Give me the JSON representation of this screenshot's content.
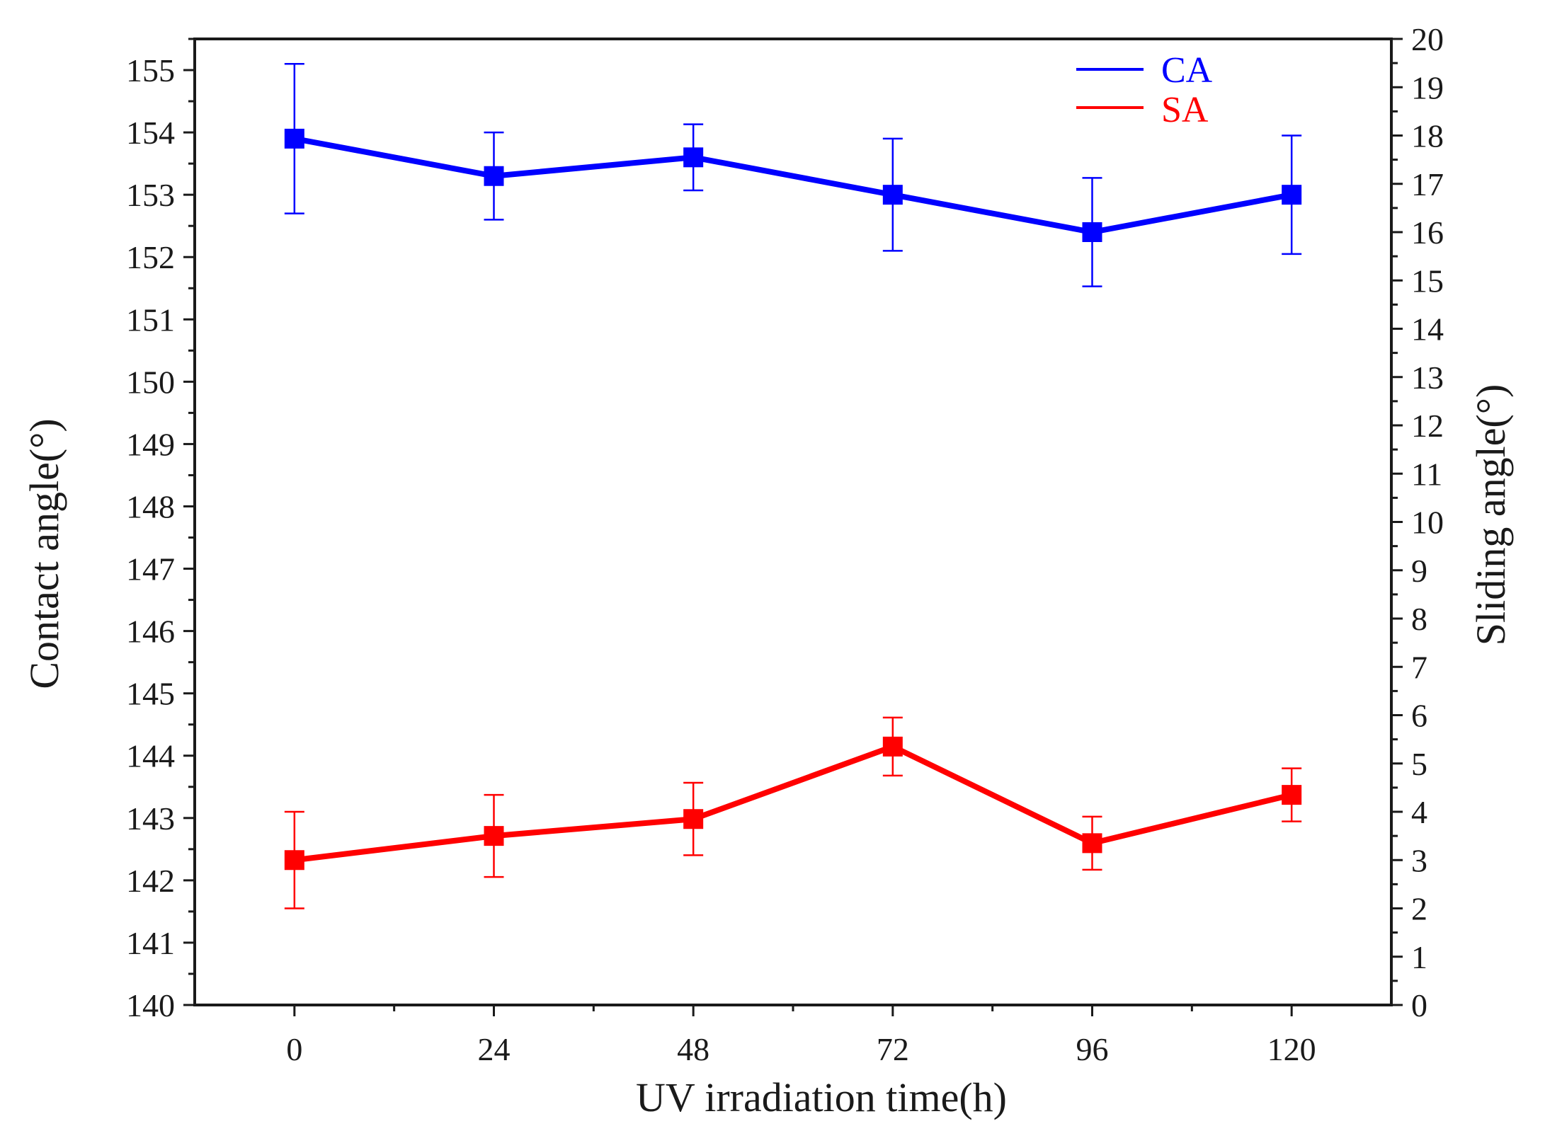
{
  "chart_data": {
    "type": "line",
    "xlabel": "UV irradiation time(h)",
    "ylabel_left": "Contact angle(°)",
    "ylabel_right": "Sliding angle(°)",
    "x": [
      0,
      24,
      48,
      72,
      96,
      120
    ],
    "x_ticks": [
      "0",
      "24",
      "48",
      "72",
      "96",
      "120"
    ],
    "xlim": [
      -12,
      132
    ],
    "ylim_left": [
      140,
      155.5
    ],
    "ylim_right": [
      0,
      20
    ],
    "y_ticks_left": [
      "140",
      "141",
      "142",
      "143",
      "144",
      "145",
      "146",
      "147",
      "148",
      "149",
      "150",
      "151",
      "152",
      "153",
      "154",
      "155"
    ],
    "y_ticks_right": [
      "0",
      "1",
      "2",
      "3",
      "4",
      "5",
      "6",
      "7",
      "8",
      "9",
      "10",
      "11",
      "12",
      "13",
      "14",
      "15",
      "16",
      "17",
      "18",
      "19",
      "20"
    ],
    "legend_position": "top-right",
    "series": [
      {
        "name": "CA",
        "axis": "left",
        "color": "#0000ff",
        "values": [
          153.9,
          153.3,
          153.6,
          153.0,
          152.4,
          153.0
        ],
        "error": [
          1.2,
          0.7,
          0.53,
          0.9,
          0.87,
          0.95
        ]
      },
      {
        "name": "SA",
        "axis": "right",
        "color": "#ff0000",
        "values": [
          3.0,
          3.5,
          3.85,
          5.35,
          3.35,
          4.35
        ],
        "error": [
          1.0,
          0.85,
          0.75,
          0.6,
          0.55,
          0.55
        ]
      }
    ]
  }
}
